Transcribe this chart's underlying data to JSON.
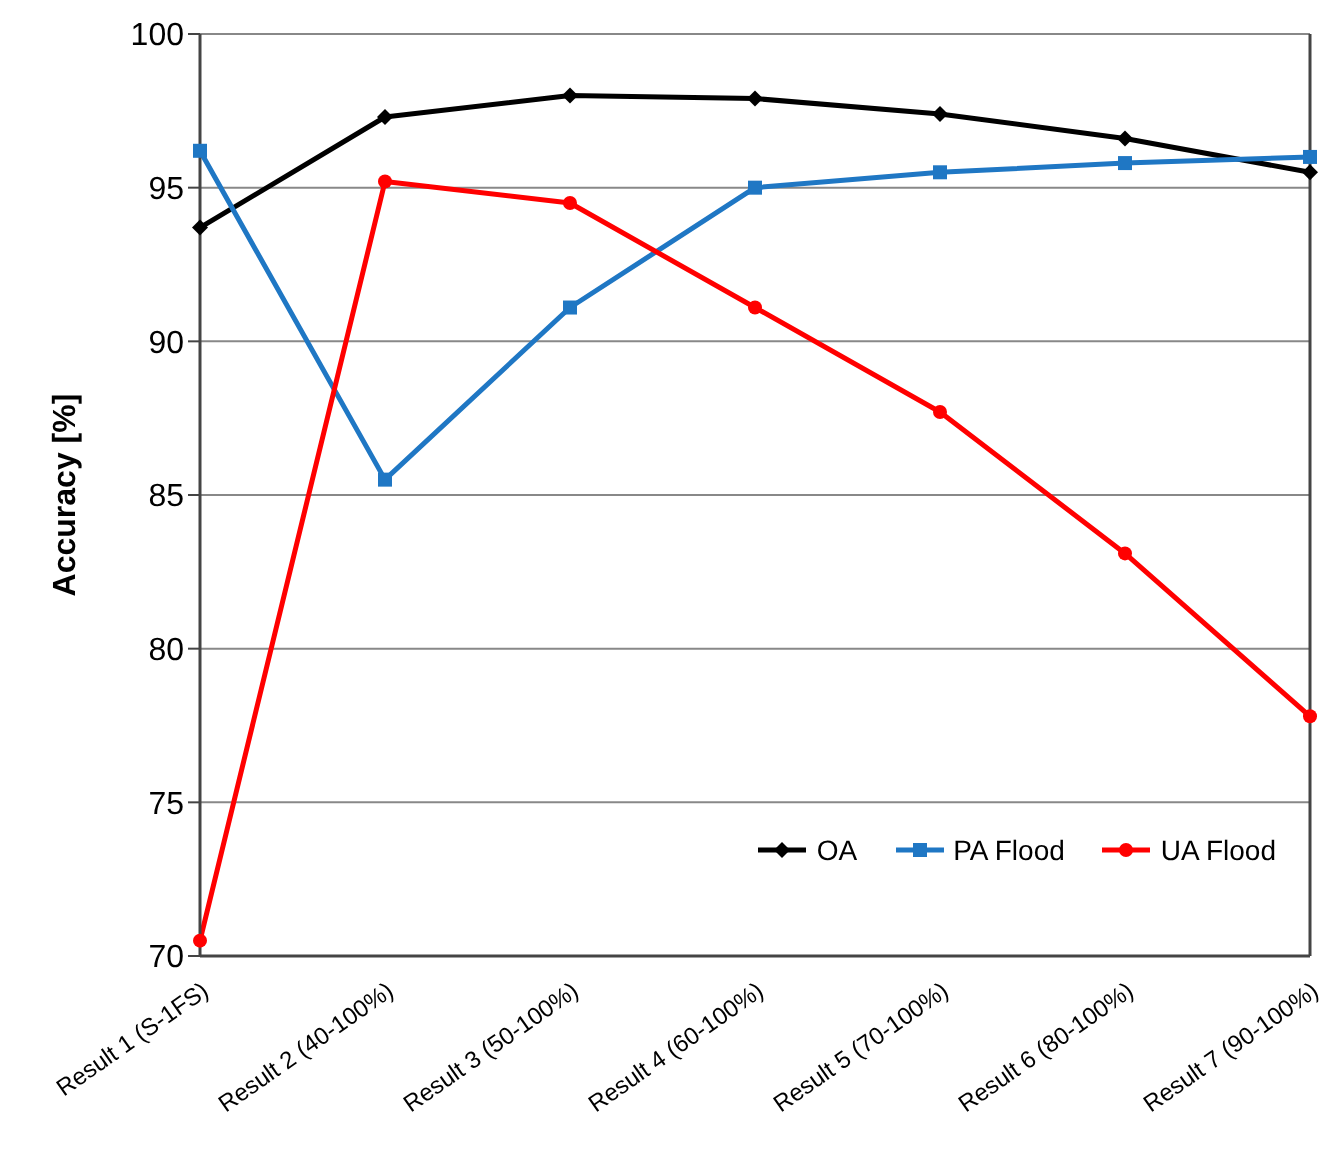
{
  "chart_data": {
    "type": "line",
    "ylabel": "Accuracy [%]",
    "categories": [
      "Result 1 (S-1FS)",
      "Result 2 (40-100%)",
      "Result 3 (50-100%)",
      "Result 4 (60-100%)",
      "Result 5 (70-100%)",
      "Result 6 (80-100%)",
      "Result 7 (90-100%)"
    ],
    "series": [
      {
        "name": "OA",
        "color": "#000000",
        "marker": "diamond",
        "values": [
          93.7,
          97.3,
          98.0,
          97.9,
          97.4,
          96.6,
          95.5
        ]
      },
      {
        "name": "PA Flood",
        "color": "#1f77c4",
        "marker": "square",
        "values": [
          96.2,
          85.5,
          91.1,
          95.0,
          95.5,
          95.8,
          96.0
        ]
      },
      {
        "name": "UA Flood",
        "color": "#ff0000",
        "marker": "circle",
        "values": [
          70.5,
          95.2,
          94.5,
          91.1,
          87.7,
          83.1,
          77.8
        ]
      }
    ],
    "ylim": [
      70,
      100
    ],
    "yticks": [
      70,
      75,
      80,
      85,
      90,
      95,
      100
    ],
    "grid": "y",
    "legend": "bottom right",
    "line_style": "solid"
  }
}
